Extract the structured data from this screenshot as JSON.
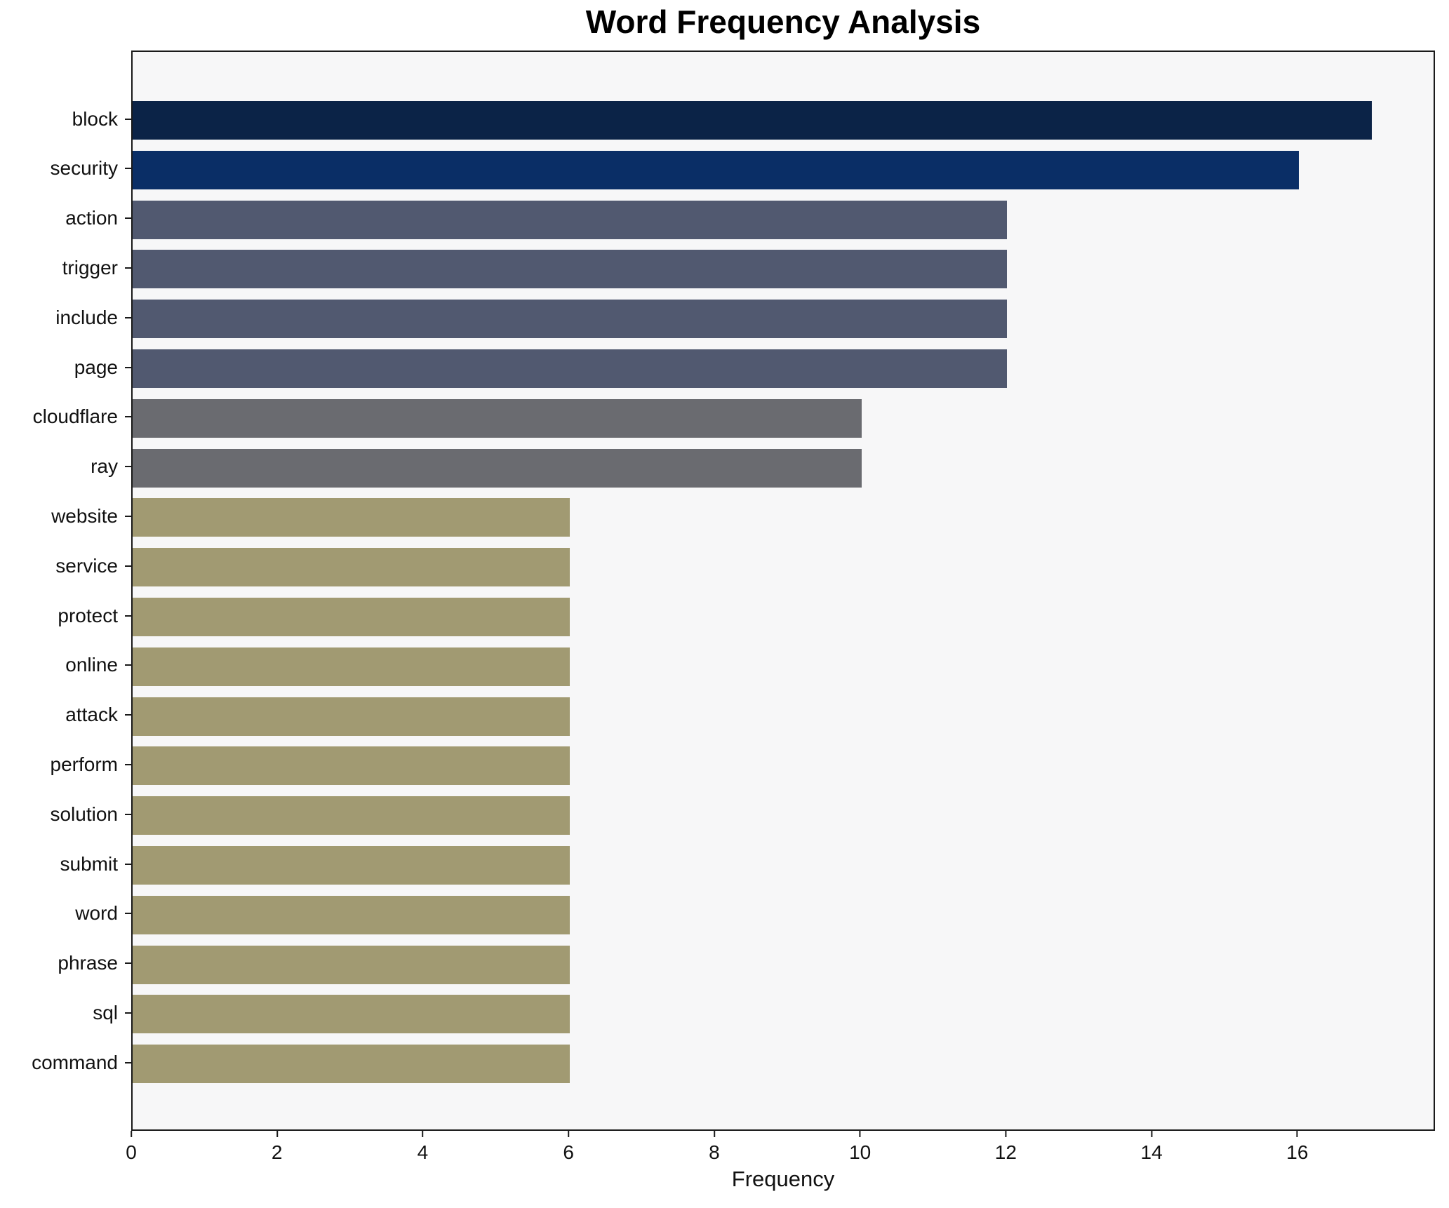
{
  "chart_data": {
    "type": "bar",
    "orientation": "horizontal",
    "title": "Word Frequency Analysis",
    "xlabel": "Frequency",
    "ylabel": "",
    "categories": [
      "block",
      "security",
      "action",
      "trigger",
      "include",
      "page",
      "cloudflare",
      "ray",
      "website",
      "service",
      "protect",
      "online",
      "attack",
      "perform",
      "solution",
      "submit",
      "word",
      "phrase",
      "sql",
      "command"
    ],
    "values": [
      17,
      16,
      12,
      12,
      12,
      12,
      10,
      10,
      6,
      6,
      6,
      6,
      6,
      6,
      6,
      6,
      6,
      6,
      6,
      6
    ],
    "bar_colors": [
      "#0b2347",
      "#0a2e66",
      "#515970",
      "#515970",
      "#515970",
      "#515970",
      "#6a6b70",
      "#6a6b70",
      "#a19a72",
      "#a19a72",
      "#a19a72",
      "#a19a72",
      "#a19a72",
      "#a19a72",
      "#a19a72",
      "#a19a72",
      "#a19a72",
      "#a19a72",
      "#a19a72",
      "#a19a72"
    ],
    "xlim": [
      0,
      17.85
    ],
    "x_ticks": [
      0,
      2,
      4,
      6,
      8,
      10,
      12,
      14,
      16
    ],
    "grid": false,
    "legend": false,
    "plot_bg": "#f7f7f8",
    "figure_bg": "#ffffff",
    "spine_color": "#1a1a1a",
    "text_color": "#111111"
  }
}
